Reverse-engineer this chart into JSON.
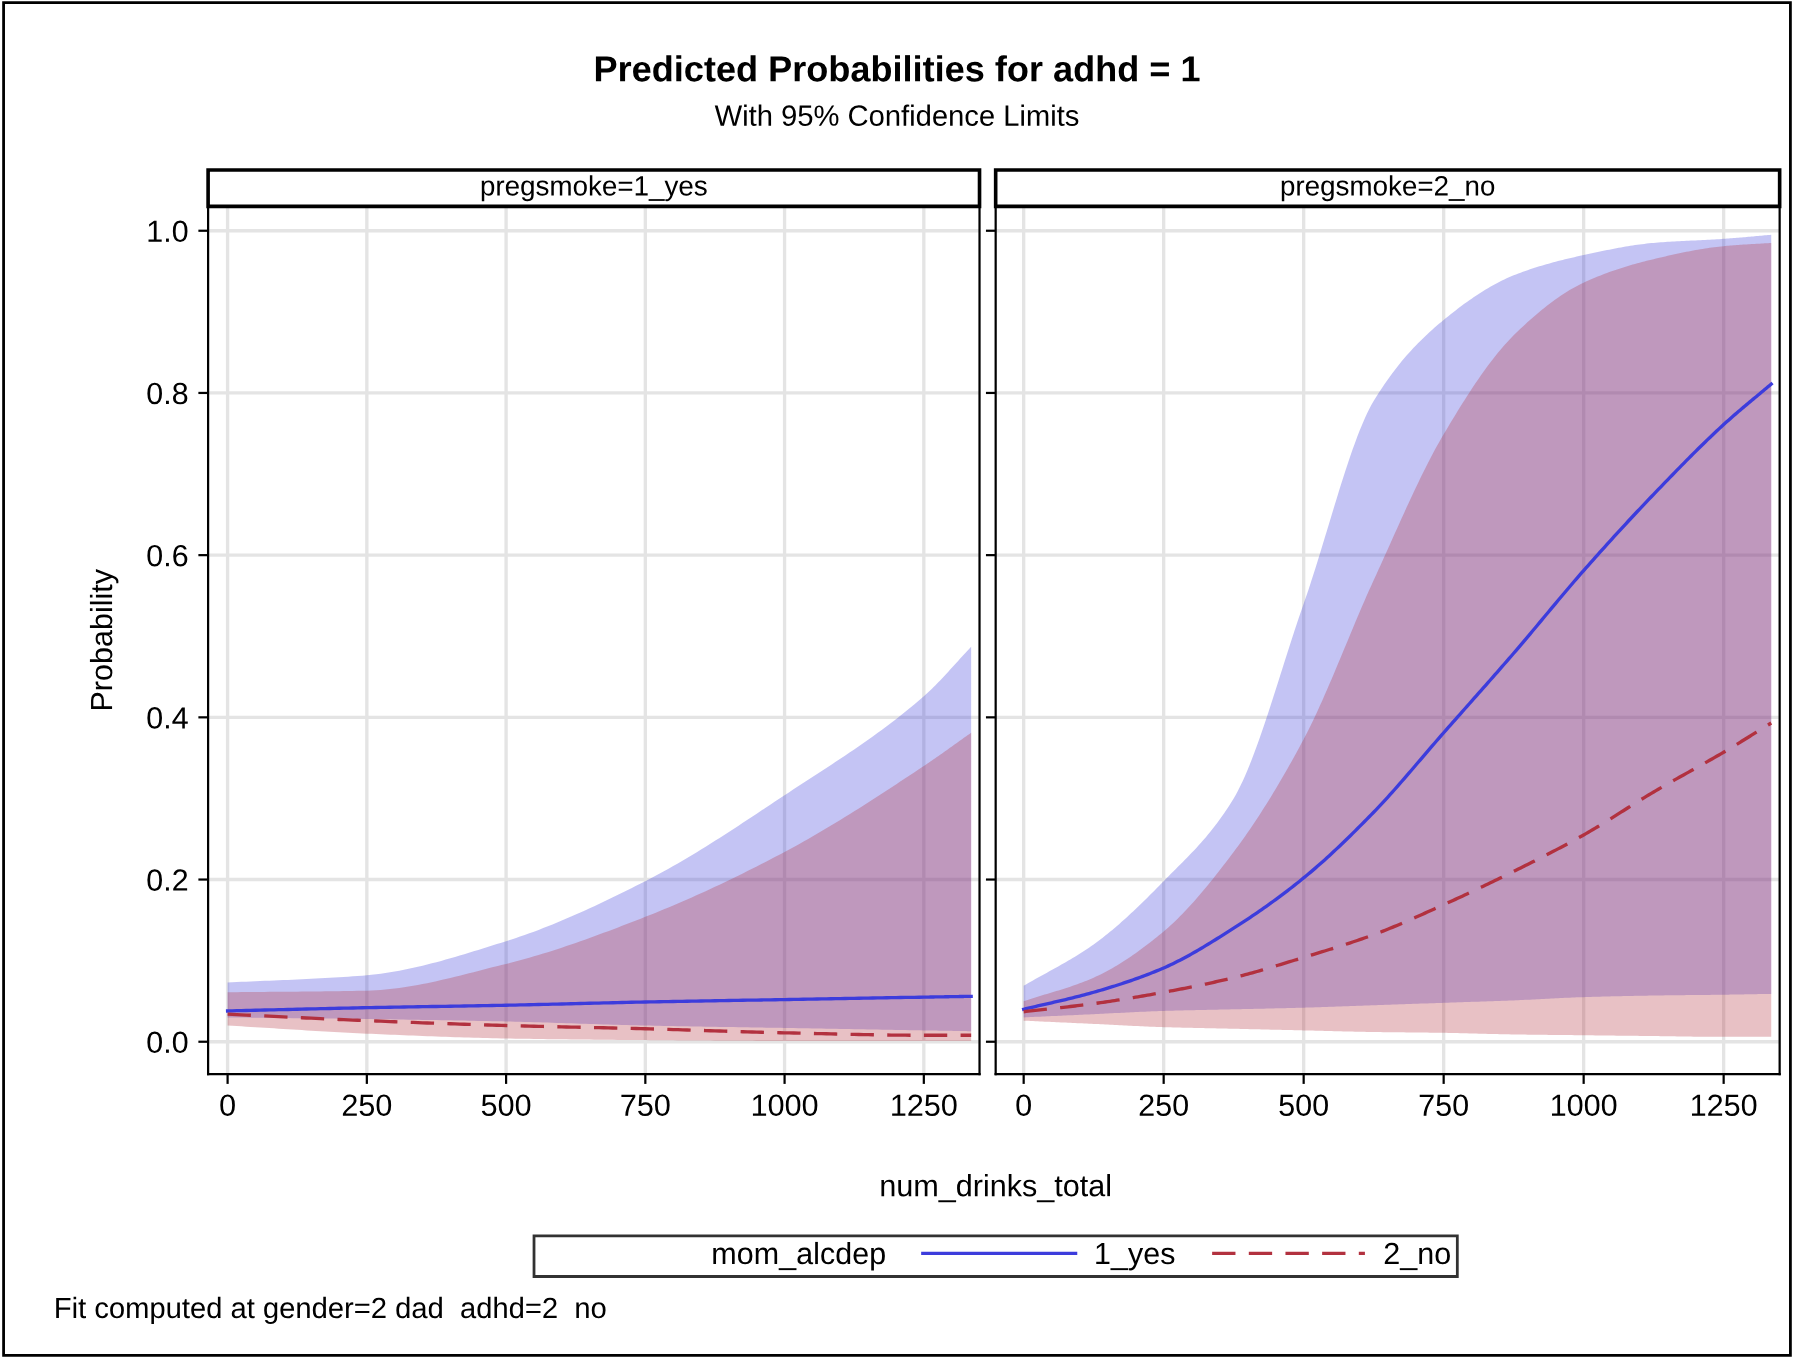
{
  "chart_data": [
    {
      "type": "line",
      "title": "Predicted Probabilities for adhd = 1",
      "subtitle": "With 95% Confidence Limits",
      "xlabel": "num_drinks_total",
      "ylabel": "Probability",
      "legend_title": "mom_alcdep",
      "legend": "bottom",
      "grid": true,
      "annotations": [
        "pregsmoke=1_yes",
        "Fit computed at gender=2 dad  adhd=2  no"
      ],
      "xlim": [
        -35,
        1350
      ],
      "xticks": [
        0,
        250,
        500,
        750,
        1000,
        1250
      ],
      "ylim": [
        -0.04,
        1.03
      ],
      "yticks": [
        {
          "value": 0,
          "label": "0.0"
        },
        {
          "value": 0.2,
          "label": "0.2"
        },
        {
          "value": 0.4,
          "label": "0.4"
        },
        {
          "value": 0.6,
          "label": "0.6"
        },
        {
          "value": 0.8,
          "label": "0.8"
        },
        {
          "value": 1,
          "label": "1.0"
        }
      ],
      "x": [
        0,
        250,
        500,
        750,
        1000,
        1250,
        1335
      ],
      "series": [
        {
          "name": "1_yes",
          "color": "#3c3cdc",
          "line_style": "solid",
          "values": [
            0.038,
            0.042,
            0.045,
            0.049,
            0.052,
            0.055,
            0.056
          ],
          "lower": [
            0.03,
            0.028,
            0.025,
            0.02,
            0.017,
            0.014,
            0.013
          ],
          "upper": [
            0.073,
            0.082,
            0.124,
            0.198,
            0.304,
            0.426,
            0.487
          ]
        },
        {
          "name": "2_no",
          "color": "#b2313f",
          "line_style": "dashed",
          "values": [
            0.034,
            0.026,
            0.02,
            0.016,
            0.011,
            0.008,
            0.008
          ],
          "lower": [
            0.02,
            0.01,
            0.004,
            0.002,
            0.001,
            0.001,
            0.001
          ],
          "upper": [
            0.061,
            0.063,
            0.096,
            0.154,
            0.234,
            0.34,
            0.381
          ]
        }
      ]
    },
    {
      "type": "line",
      "grid": true,
      "tick_labels": "x",
      "annotations": [
        "pregsmoke=2_no"
      ],
      "xlim": [
        -50,
        1350
      ],
      "xticks": [
        0,
        250,
        500,
        750,
        1000,
        1250
      ],
      "ylim": [
        -0.04,
        1.03
      ],
      "yticks": [
        {
          "value": 0,
          "label": null
        },
        {
          "value": 0.2,
          "label": null
        },
        {
          "value": 0.4,
          "label": null
        },
        {
          "value": 0.6,
          "label": null
        },
        {
          "value": 0.8,
          "label": null
        },
        {
          "value": 1,
          "label": null
        }
      ],
      "x": [
        0,
        125,
        250,
        375,
        500,
        625,
        750,
        875,
        1000,
        1125,
        1250,
        1335
      ],
      "series": [
        {
          "color": "#3c3cdc",
          "line_style": "solid",
          "values": [
            0.04,
            0.061,
            0.091,
            0.14,
            0.202,
            0.283,
            0.381,
            0.479,
            0.581,
            0.675,
            0.761,
            0.811
          ],
          "lower": [
            0.03,
            0.034,
            0.038,
            0.04,
            0.042,
            0.045,
            0.048,
            0.051,
            0.055,
            0.057,
            0.058,
            0.059
          ],
          "upper": [
            0.069,
            0.12,
            0.198,
            0.3,
            0.54,
            0.79,
            0.89,
            0.945,
            0.97,
            0.985,
            0.99,
            0.995
          ]
        },
        {
          "color": "#b2313f",
          "line_style": "dashed",
          "values": [
            0.037,
            0.047,
            0.061,
            0.079,
            0.104,
            0.132,
            0.169,
            0.21,
            0.255,
            0.308,
            0.357,
            0.393
          ],
          "lower": [
            0.026,
            0.022,
            0.018,
            0.016,
            0.014,
            0.012,
            0.011,
            0.009,
            0.008,
            0.007,
            0.006,
            0.006
          ],
          "upper": [
            0.05,
            0.079,
            0.136,
            0.234,
            0.373,
            0.569,
            0.749,
            0.871,
            0.936,
            0.965,
            0.981,
            0.985
          ]
        }
      ]
    }
  ]
}
